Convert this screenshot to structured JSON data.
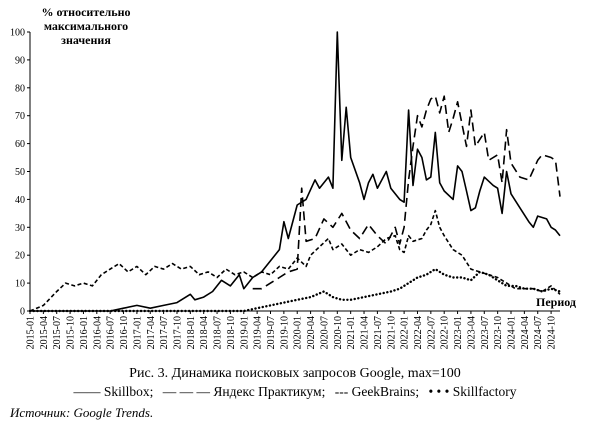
{
  "chart_data": {
    "type": "line",
    "ylabel": "% относительно\nмаксимального\nзначения",
    "xlabel": "Период",
    "ylim": [
      0,
      100
    ],
    "yticks": [
      0,
      10,
      20,
      30,
      40,
      50,
      60,
      70,
      80,
      90,
      100
    ],
    "grid": false,
    "legend_position": "bottom",
    "x_ticks": [
      "2015-01",
      "2015-04",
      "2015-07",
      "2015-10",
      "2016-01",
      "2016-04",
      "2016-07",
      "2016-10",
      "2017-01",
      "2017-04",
      "2017-07",
      "2017-10",
      "2018-01",
      "2018-04",
      "2018-07",
      "2018-10",
      "2019-01",
      "2019-04",
      "2019-07",
      "2019-10",
      "2020-01",
      "2020-04",
      "2020-07",
      "2020-10",
      "2021-01",
      "2021-04",
      "2021-07",
      "2021-10",
      "2022-01",
      "2022-04",
      "2022-07",
      "2022-10",
      "2023-01",
      "2023-04",
      "2023-07",
      "2023-10",
      "2024-01",
      "2024-04",
      "2024-07",
      "2024-10"
    ],
    "series": [
      {
        "name": "Skillbox",
        "style": "solid",
        "points": [
          [
            "2015-01",
            0
          ],
          [
            "2015-07",
            0
          ],
          [
            "2016-01",
            0
          ],
          [
            "2016-07",
            0
          ],
          [
            "2016-10",
            1
          ],
          [
            "2017-01",
            2
          ],
          [
            "2017-04",
            1
          ],
          [
            "2017-07",
            2
          ],
          [
            "2017-10",
            3
          ],
          [
            "2018-01",
            6
          ],
          [
            "2018-02",
            4
          ],
          [
            "2018-04",
            5
          ],
          [
            "2018-06",
            7
          ],
          [
            "2018-08",
            11
          ],
          [
            "2018-10",
            9
          ],
          [
            "2018-12",
            13
          ],
          [
            "2019-01",
            8
          ],
          [
            "2019-03",
            12
          ],
          [
            "2019-05",
            14
          ],
          [
            "2019-07",
            18
          ],
          [
            "2019-09",
            22
          ],
          [
            "2019-10",
            32
          ],
          [
            "2019-11",
            26
          ],
          [
            "2020-01",
            38
          ],
          [
            "2020-03",
            40
          ],
          [
            "2020-05",
            47
          ],
          [
            "2020-06",
            44
          ],
          [
            "2020-08",
            48
          ],
          [
            "2020-09",
            44
          ],
          [
            "2020-10",
            100
          ],
          [
            "2020-11",
            54
          ],
          [
            "2020-12",
            73
          ],
          [
            "2021-01",
            55
          ],
          [
            "2021-03",
            46
          ],
          [
            "2021-04",
            40
          ],
          [
            "2021-05",
            46
          ],
          [
            "2021-06",
            49
          ],
          [
            "2021-07",
            44
          ],
          [
            "2021-09",
            50
          ],
          [
            "2021-10",
            44
          ],
          [
            "2021-12",
            40
          ],
          [
            "2022-01",
            39
          ],
          [
            "2022-02",
            72
          ],
          [
            "2022-03",
            45
          ],
          [
            "2022-04",
            58
          ],
          [
            "2022-05",
            55
          ],
          [
            "2022-06",
            47
          ],
          [
            "2022-07",
            48
          ],
          [
            "2022-08",
            64
          ],
          [
            "2022-09",
            46
          ],
          [
            "2022-10",
            43
          ],
          [
            "2022-12",
            40
          ],
          [
            "2023-01",
            52
          ],
          [
            "2023-02",
            50
          ],
          [
            "2023-03",
            43
          ],
          [
            "2023-04",
            36
          ],
          [
            "2023-05",
            37
          ],
          [
            "2023-06",
            43
          ],
          [
            "2023-07",
            48
          ],
          [
            "2023-09",
            45
          ],
          [
            "2023-10",
            44
          ],
          [
            "2023-11",
            35
          ],
          [
            "2023-12",
            50
          ],
          [
            "2024-01",
            42
          ],
          [
            "2024-03",
            37
          ],
          [
            "2024-05",
            32
          ],
          [
            "2024-06",
            30
          ],
          [
            "2024-07",
            34
          ],
          [
            "2024-09",
            33
          ],
          [
            "2024-10",
            30
          ],
          [
            "2024-11",
            29
          ],
          [
            "2024-12",
            27
          ]
        ]
      },
      {
        "name": "Яндекс Практикум",
        "style": "long-dash",
        "points": [
          [
            "2019-03",
            8
          ],
          [
            "2019-05",
            8
          ],
          [
            "2019-07",
            10
          ],
          [
            "2019-09",
            12
          ],
          [
            "2019-11",
            14
          ],
          [
            "2020-01",
            15
          ],
          [
            "2020-02",
            44
          ],
          [
            "2020-03",
            25
          ],
          [
            "2020-05",
            26
          ],
          [
            "2020-07",
            33
          ],
          [
            "2020-09",
            30
          ],
          [
            "2020-11",
            35
          ],
          [
            "2021-01",
            29
          ],
          [
            "2021-03",
            26
          ],
          [
            "2021-05",
            31
          ],
          [
            "2021-07",
            27
          ],
          [
            "2021-09",
            24
          ],
          [
            "2021-11",
            30
          ],
          [
            "2021-12",
            24
          ],
          [
            "2022-01",
            30
          ],
          [
            "2022-02",
            47
          ],
          [
            "2022-03",
            59
          ],
          [
            "2022-04",
            70
          ],
          [
            "2022-05",
            66
          ],
          [
            "2022-06",
            72
          ],
          [
            "2022-07",
            76
          ],
          [
            "2022-08",
            77
          ],
          [
            "2022-09",
            71
          ],
          [
            "2022-10",
            77
          ],
          [
            "2022-11",
            64
          ],
          [
            "2022-12",
            69
          ],
          [
            "2023-01",
            75
          ],
          [
            "2023-02",
            67
          ],
          [
            "2023-03",
            59
          ],
          [
            "2023-04",
            72
          ],
          [
            "2023-05",
            59
          ],
          [
            "2023-07",
            64
          ],
          [
            "2023-08",
            54
          ],
          [
            "2023-10",
            56
          ],
          [
            "2023-11",
            46
          ],
          [
            "2023-12",
            65
          ],
          [
            "2024-01",
            53
          ],
          [
            "2024-03",
            48
          ],
          [
            "2024-05",
            47
          ],
          [
            "2024-07",
            54
          ],
          [
            "2024-08",
            56
          ],
          [
            "2024-10",
            55
          ],
          [
            "2024-11",
            54
          ],
          [
            "2024-12",
            41
          ]
        ]
      },
      {
        "name": "GeekBrains",
        "style": "short-dash",
        "points": [
          [
            "2015-01",
            0
          ],
          [
            "2015-04",
            2
          ],
          [
            "2015-07",
            7
          ],
          [
            "2015-09",
            10
          ],
          [
            "2015-11",
            9
          ],
          [
            "2016-01",
            10
          ],
          [
            "2016-03",
            9
          ],
          [
            "2016-05",
            13
          ],
          [
            "2016-07",
            15
          ],
          [
            "2016-09",
            17
          ],
          [
            "2016-11",
            14
          ],
          [
            "2017-01",
            16
          ],
          [
            "2017-03",
            13
          ],
          [
            "2017-05",
            16
          ],
          [
            "2017-07",
            15
          ],
          [
            "2017-09",
            17
          ],
          [
            "2017-11",
            15
          ],
          [
            "2018-01",
            16
          ],
          [
            "2018-03",
            13
          ],
          [
            "2018-05",
            14
          ],
          [
            "2018-07",
            12
          ],
          [
            "2018-09",
            15
          ],
          [
            "2018-11",
            13
          ],
          [
            "2019-01",
            14
          ],
          [
            "2019-03",
            12
          ],
          [
            "2019-05",
            14
          ],
          [
            "2019-07",
            13
          ],
          [
            "2019-09",
            16
          ],
          [
            "2019-11",
            15
          ],
          [
            "2020-01",
            19
          ],
          [
            "2020-03",
            16
          ],
          [
            "2020-04",
            20
          ],
          [
            "2020-06",
            23
          ],
          [
            "2020-08",
            26
          ],
          [
            "2020-09",
            22
          ],
          [
            "2020-11",
            24
          ],
          [
            "2021-01",
            20
          ],
          [
            "2021-03",
            22
          ],
          [
            "2021-05",
            21
          ],
          [
            "2021-07",
            23
          ],
          [
            "2021-09",
            26
          ],
          [
            "2021-11",
            27
          ],
          [
            "2021-12",
            22
          ],
          [
            "2022-01",
            21
          ],
          [
            "2022-02",
            27
          ],
          [
            "2022-03",
            25
          ],
          [
            "2022-05",
            26
          ],
          [
            "2022-06",
            29
          ],
          [
            "2022-07",
            31
          ],
          [
            "2022-08",
            36
          ],
          [
            "2022-09",
            30
          ],
          [
            "2022-10",
            27
          ],
          [
            "2022-12",
            22
          ],
          [
            "2023-02",
            20
          ],
          [
            "2023-04",
            15
          ],
          [
            "2023-06",
            14
          ],
          [
            "2023-08",
            13
          ],
          [
            "2023-10",
            12
          ],
          [
            "2023-12",
            10
          ],
          [
            "2024-02",
            8
          ],
          [
            "2024-04",
            8
          ],
          [
            "2024-06",
            8
          ],
          [
            "2024-08",
            7
          ],
          [
            "2024-10",
            9
          ],
          [
            "2024-12",
            6
          ]
        ]
      },
      {
        "name": "Skillfactory",
        "style": "dotted",
        "points": [
          [
            "2015-01",
            0
          ],
          [
            "2016-01",
            0
          ],
          [
            "2017-01",
            0
          ],
          [
            "2018-01",
            0
          ],
          [
            "2019-01",
            0
          ],
          [
            "2019-04",
            1
          ],
          [
            "2019-07",
            2
          ],
          [
            "2019-10",
            3
          ],
          [
            "2020-01",
            4
          ],
          [
            "2020-04",
            5
          ],
          [
            "2020-07",
            7
          ],
          [
            "2020-09",
            5
          ],
          [
            "2020-11",
            4
          ],
          [
            "2021-01",
            4
          ],
          [
            "2021-04",
            5
          ],
          [
            "2021-07",
            6
          ],
          [
            "2021-10",
            7
          ],
          [
            "2021-12",
            8
          ],
          [
            "2022-02",
            10
          ],
          [
            "2022-04",
            12
          ],
          [
            "2022-06",
            13
          ],
          [
            "2022-08",
            15
          ],
          [
            "2022-10",
            13
          ],
          [
            "2022-12",
            12
          ],
          [
            "2023-02",
            12
          ],
          [
            "2023-04",
            11
          ],
          [
            "2023-06",
            14
          ],
          [
            "2023-08",
            13
          ],
          [
            "2023-10",
            11
          ],
          [
            "2023-12",
            9
          ],
          [
            "2024-02",
            9
          ],
          [
            "2024-04",
            8
          ],
          [
            "2024-06",
            8
          ],
          [
            "2024-08",
            7
          ],
          [
            "2024-10",
            8
          ],
          [
            "2024-12",
            7
          ]
        ]
      }
    ]
  },
  "caption": "Рис. 3. Динамика поисковых запросов Google, max=100",
  "legend": [
    {
      "name": "Skillbox",
      "marker": "——",
      "sep": ";"
    },
    {
      "name": "Яндекс Практикум",
      "marker": "— — —",
      "sep": ";"
    },
    {
      "name": "GeekBrains",
      "marker": "---",
      "sep": ";"
    },
    {
      "name": "Skillfactory",
      "marker": "• • •",
      "sep": ""
    }
  ],
  "source": "Источник: Google Trends."
}
